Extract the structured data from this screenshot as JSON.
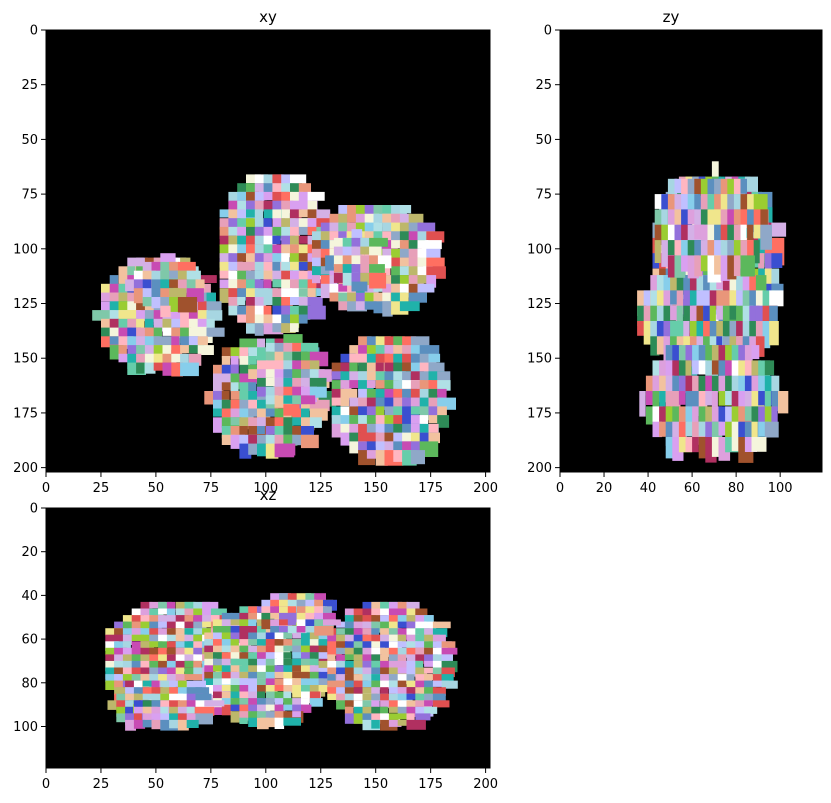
{
  "figure": {
    "background": "#ffffff",
    "panel_background": "#000000"
  },
  "chart_data": [
    {
      "type": "heatmap",
      "title": "xy",
      "xlim": [
        0,
        202
      ],
      "ylim": [
        202,
        0
      ],
      "x_ticks": [
        0,
        25,
        50,
        75,
        100,
        125,
        150,
        175,
        200
      ],
      "y_ticks": [
        0,
        25,
        50,
        75,
        100,
        125,
        150,
        175,
        200
      ],
      "grid": false,
      "blobs": [
        {
          "cx": 101,
          "cy": 100,
          "rx": 26,
          "ry": 38
        },
        {
          "cx": 147,
          "cy": 102,
          "rx": 30,
          "ry": 26
        },
        {
          "cx": 139,
          "cy": 103,
          "rx": 12,
          "ry": 12
        },
        {
          "cx": 48,
          "cy": 128,
          "rx": 27,
          "ry": 28
        },
        {
          "cx": 52,
          "cy": 114,
          "rx": 16,
          "ry": 12
        },
        {
          "cx": 98,
          "cy": 165,
          "rx": 26,
          "ry": 28
        },
        {
          "cx": 108,
          "cy": 155,
          "rx": 16,
          "ry": 16
        },
        {
          "cx": 153,
          "cy": 166,
          "rx": 27,
          "ry": 30
        }
      ]
    },
    {
      "type": "heatmap",
      "title": "zy",
      "xlim": [
        0,
        119
      ],
      "ylim": [
        202,
        0
      ],
      "x_ticks": [
        0,
        20,
        40,
        60,
        80,
        100
      ],
      "y_ticks": [
        0,
        25,
        50,
        75,
        100,
        125,
        150,
        175,
        200
      ],
      "grid": false,
      "blobs": [
        {
          "cx": 69,
          "cy": 100,
          "rx": 30,
          "ry": 40
        },
        {
          "cx": 65,
          "cy": 127,
          "rx": 33,
          "ry": 22
        },
        {
          "cx": 68,
          "cy": 165,
          "rx": 32,
          "ry": 28
        },
        {
          "cx": 66,
          "cy": 85,
          "rx": 26,
          "ry": 24
        }
      ]
    },
    {
      "type": "heatmap",
      "title": "xz",
      "xlim": [
        0,
        202
      ],
      "ylim": [
        119,
        0
      ],
      "x_ticks": [
        0,
        25,
        50,
        75,
        100,
        125,
        150,
        175,
        200
      ],
      "y_ticks": [
        0,
        20,
        40,
        60,
        80,
        100
      ],
      "grid": false,
      "blobs": [
        {
          "cx": 57,
          "cy": 68,
          "rx": 34,
          "ry": 28
        },
        {
          "cx": 98,
          "cy": 70,
          "rx": 30,
          "ry": 28
        },
        {
          "cx": 153,
          "cy": 70,
          "rx": 29,
          "ry": 30
        },
        {
          "cx": 50,
          "cy": 88,
          "rx": 22,
          "ry": 12
        },
        {
          "cx": 112,
          "cy": 46,
          "rx": 18,
          "ry": 10
        }
      ]
    }
  ]
}
